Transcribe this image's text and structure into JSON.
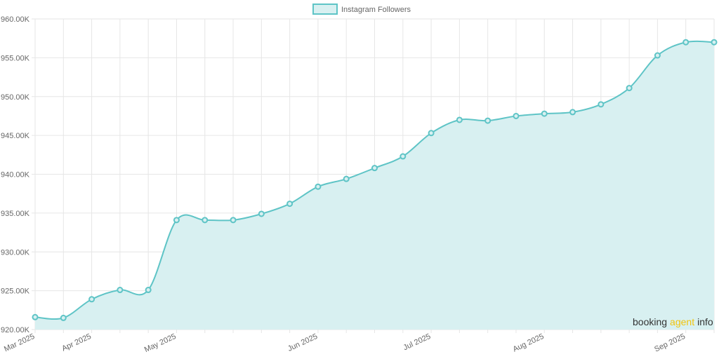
{
  "colors": {
    "line": "#5ec4c6",
    "fill": "#d8f0f1",
    "grid": "#e6e6e6",
    "watermark_text": "#333333",
    "watermark_accent": "#f1c40f"
  },
  "watermark": {
    "part1": "booking",
    "part2": "agent",
    "part3": "info"
  },
  "chart_data": {
    "type": "area",
    "legend": {
      "position": "top-center"
    },
    "grid": true,
    "ylim": [
      920000,
      960000
    ],
    "yticks": [
      920000,
      925000,
      930000,
      935000,
      940000,
      945000,
      950000,
      955000,
      960000
    ],
    "ytick_labels": [
      "920.00K",
      "925.00K",
      "930.00K",
      "935.00K",
      "940.00K",
      "945.00K",
      "950.00K",
      "955.00K",
      "960.00K"
    ],
    "xtick_labels": [
      {
        "label": "Mar 2025",
        "index": 0
      },
      {
        "label": "Apr 2025",
        "index": 2
      },
      {
        "label": "May 2025",
        "index": 5
      },
      {
        "label": "Jun 2025",
        "index": 10
      },
      {
        "label": "Jul 2025",
        "index": 14
      },
      {
        "label": "Aug 2025",
        "index": 18
      },
      {
        "label": "Sep 2025",
        "index": 23
      }
    ],
    "series": [
      {
        "name": "Instagram Followers",
        "values": [
          921600,
          921500,
          923900,
          925100,
          925100,
          934100,
          934100,
          934100,
          934900,
          936200,
          938400,
          939400,
          940800,
          942300,
          945300,
          947000,
          946900,
          947500,
          947800,
          948000,
          949000,
          951100,
          955300,
          957000,
          957000
        ]
      }
    ]
  }
}
